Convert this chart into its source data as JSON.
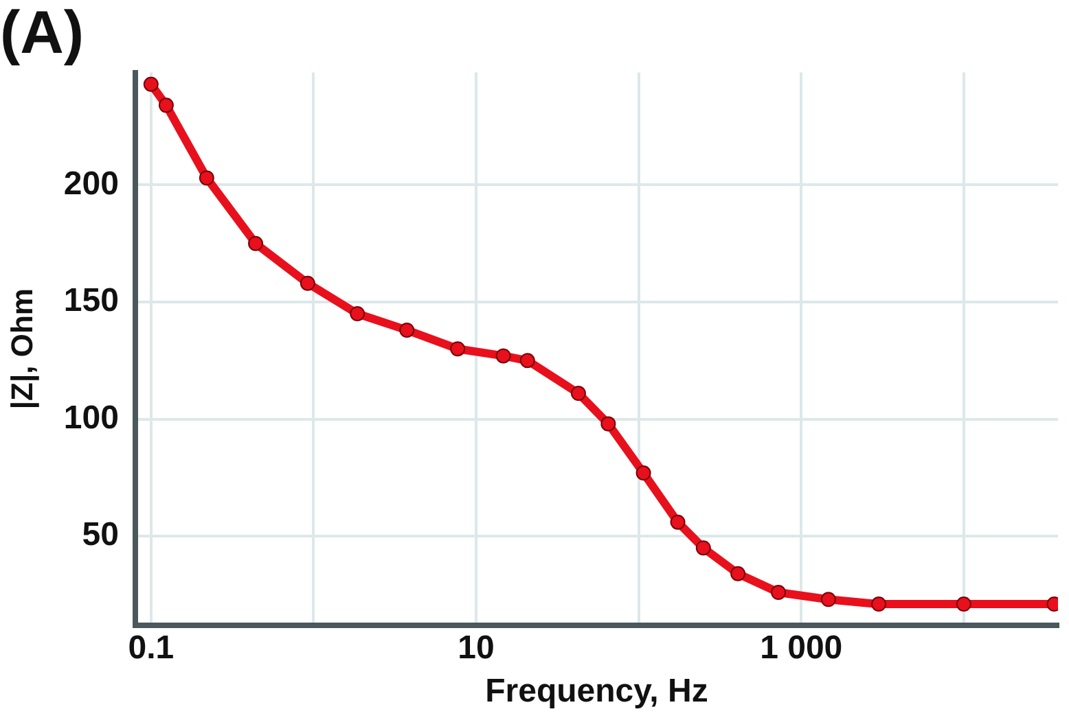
{
  "chart_data": {
    "type": "line",
    "title": "(A)",
    "xlabel": "Frequency, Hz",
    "ylabel": "|Z|, Ohm",
    "log": "x",
    "grid": true,
    "legend": false,
    "marker": "circle",
    "line_style": "solid",
    "xlim": [
      0.08,
      38000
    ],
    "ylim": [
      12,
      248
    ],
    "xticks": [
      0.1,
      {
        "value": 1,
        "label": null
      },
      10,
      {
        "value": 100,
        "label": null
      },
      {
        "value": 1000,
        "label": "1 000"
      },
      {
        "value": 10000,
        "label": null
      }
    ],
    "yticks": [
      50,
      100,
      150,
      200
    ],
    "series": [
      {
        "color": "#e8101c",
        "x": [
          0.1,
          0.124,
          0.22,
          0.44,
          0.92,
          1.86,
          3.75,
          7.7,
          14.7,
          20.7,
          42.6,
          65,
          107,
          174,
          250,
          408,
          724,
          1470,
          3000,
          10000,
          36000
        ],
        "values": [
          243,
          234,
          203,
          175,
          158,
          145,
          138,
          130,
          127,
          125,
          111,
          98,
          77,
          56,
          45,
          34,
          26,
          23,
          21,
          21,
          21
        ]
      }
    ]
  }
}
